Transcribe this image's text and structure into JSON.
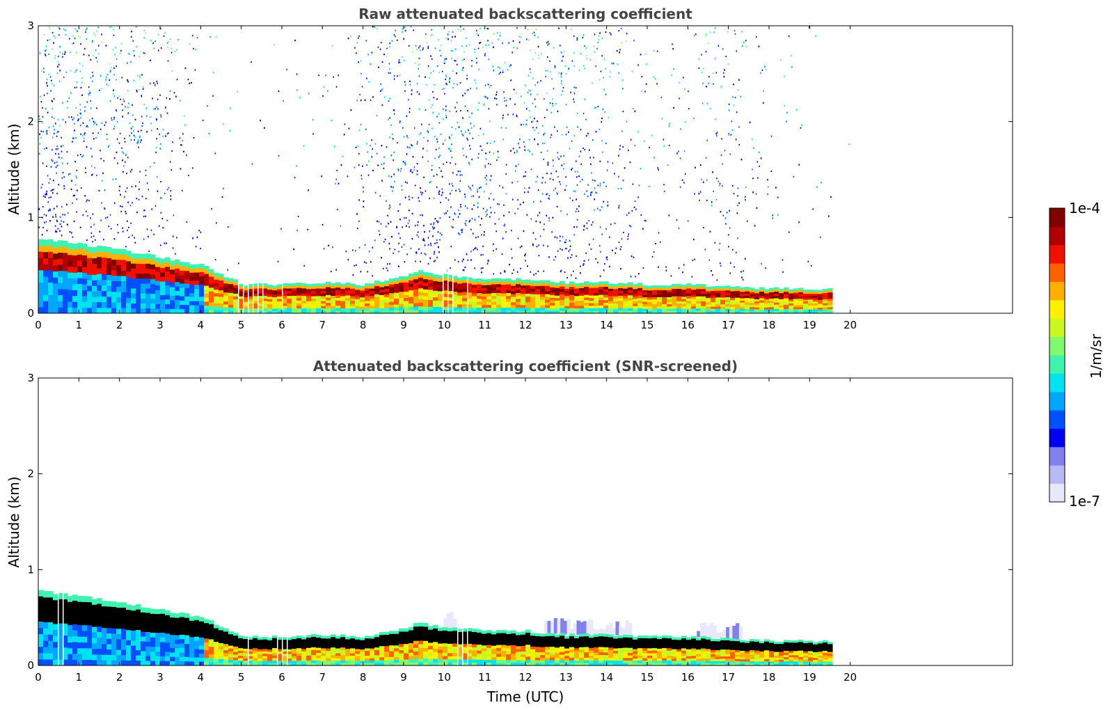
{
  "chart_data": [
    {
      "type": "heatmap",
      "title": "Raw attenuated backscattering coefficient",
      "xlabel": "",
      "ylabel": "Altitude (km)",
      "xlim": [
        0,
        24
      ],
      "ylim": [
        0,
        3
      ],
      "xticks": [
        "0",
        "1",
        "2",
        "3",
        "4",
        "5",
        "6",
        "7",
        "8",
        "9",
        "10",
        "11",
        "12",
        "13",
        "14",
        "15",
        "16",
        "17",
        "18",
        "19",
        "20"
      ],
      "yticks": [
        "0",
        "1",
        "2",
        "3"
      ],
      "data_end_hour": 19.55,
      "boundary_layer_top_km": {
        "hours": [
          0,
          1,
          2,
          3,
          4,
          5,
          6,
          7,
          8,
          9,
          9.3,
          10,
          11,
          12,
          13,
          14,
          15,
          16,
          17,
          18,
          19.55
        ],
        "values": [
          0.78,
          0.72,
          0.66,
          0.58,
          0.5,
          0.3,
          0.3,
          0.32,
          0.3,
          0.4,
          0.44,
          0.4,
          0.36,
          0.36,
          0.32,
          0.32,
          0.3,
          0.3,
          0.28,
          0.26,
          0.25
        ]
      },
      "noise_density": {
        "hours": [
          0,
          1,
          2,
          3,
          4,
          5,
          6,
          7,
          8,
          9,
          10,
          11,
          12,
          13,
          14,
          15,
          16,
          17,
          18,
          19,
          20
        ],
        "values": [
          0.7,
          0.6,
          0.55,
          0.45,
          0.08,
          0.02,
          0.03,
          0.08,
          0.3,
          0.6,
          0.75,
          0.65,
          0.55,
          0.6,
          0.5,
          0.18,
          0.15,
          0.4,
          0.08,
          0.04,
          0.0
        ]
      }
    },
    {
      "type": "heatmap",
      "title": "Attenuated backscattering coefficient (SNR-screened)",
      "xlabel": "Time (UTC)",
      "ylabel": "Altitude (km)",
      "xlim": [
        0,
        24
      ],
      "ylim": [
        0,
        3
      ],
      "xticks": [
        "0",
        "1",
        "2",
        "3",
        "4",
        "5",
        "6",
        "7",
        "8",
        "9",
        "10",
        "11",
        "12",
        "13",
        "14",
        "15",
        "16",
        "17",
        "18",
        "19",
        "20"
      ],
      "yticks": [
        "0",
        "1",
        "2",
        "3"
      ],
      "data_end_hour": 19.55,
      "saturated_core_color": "#000000"
    }
  ],
  "colorbar": {
    "label": "1/m/sr",
    "max_label": "1e-4",
    "min_label": "1e-7",
    "stops": [
      "#e8e8fa",
      "#b8b8f2",
      "#8080ee",
      "#0000f0",
      "#0050ff",
      "#00a6ff",
      "#00e2f0",
      "#40f2b0",
      "#80f870",
      "#c8f820",
      "#fff000",
      "#ffb000",
      "#ff6000",
      "#f01000",
      "#b00000",
      "#800000"
    ]
  }
}
